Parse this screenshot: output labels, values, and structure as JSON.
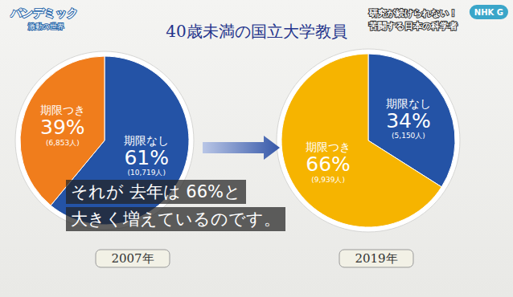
{
  "header": {
    "program": "パンデミック",
    "program_sub": "激動の世界",
    "episode": [
      "研究が続けられない！",
      "苦闘する日本の科学者"
    ],
    "logo": "NHK G"
  },
  "title": "40歳未満の国立大学教員",
  "caption": [
    "それが 去年は 66%と",
    "大きく増えているのです。"
  ],
  "chart_data": [
    {
      "type": "pie",
      "title": "2007年",
      "categories": [
        "期限なし",
        "期限つき"
      ],
      "values": [
        61,
        39
      ],
      "value_labels": [
        "61%",
        "39%"
      ],
      "count_labels": [
        "(10,719人)",
        "(6,853人)"
      ],
      "colors": [
        "#2453a6",
        "#f07d1c"
      ],
      "data_labels": true
    },
    {
      "type": "pie",
      "title": "2019年",
      "categories": [
        "期限なし",
        "期限つき"
      ],
      "values": [
        34,
        66
      ],
      "value_labels": [
        "34%",
        "66%"
      ],
      "count_labels": [
        "(5,150人)",
        "(9,939人)"
      ],
      "colors": [
        "#2453a6",
        "#f6b400"
      ],
      "data_labels": true
    }
  ]
}
